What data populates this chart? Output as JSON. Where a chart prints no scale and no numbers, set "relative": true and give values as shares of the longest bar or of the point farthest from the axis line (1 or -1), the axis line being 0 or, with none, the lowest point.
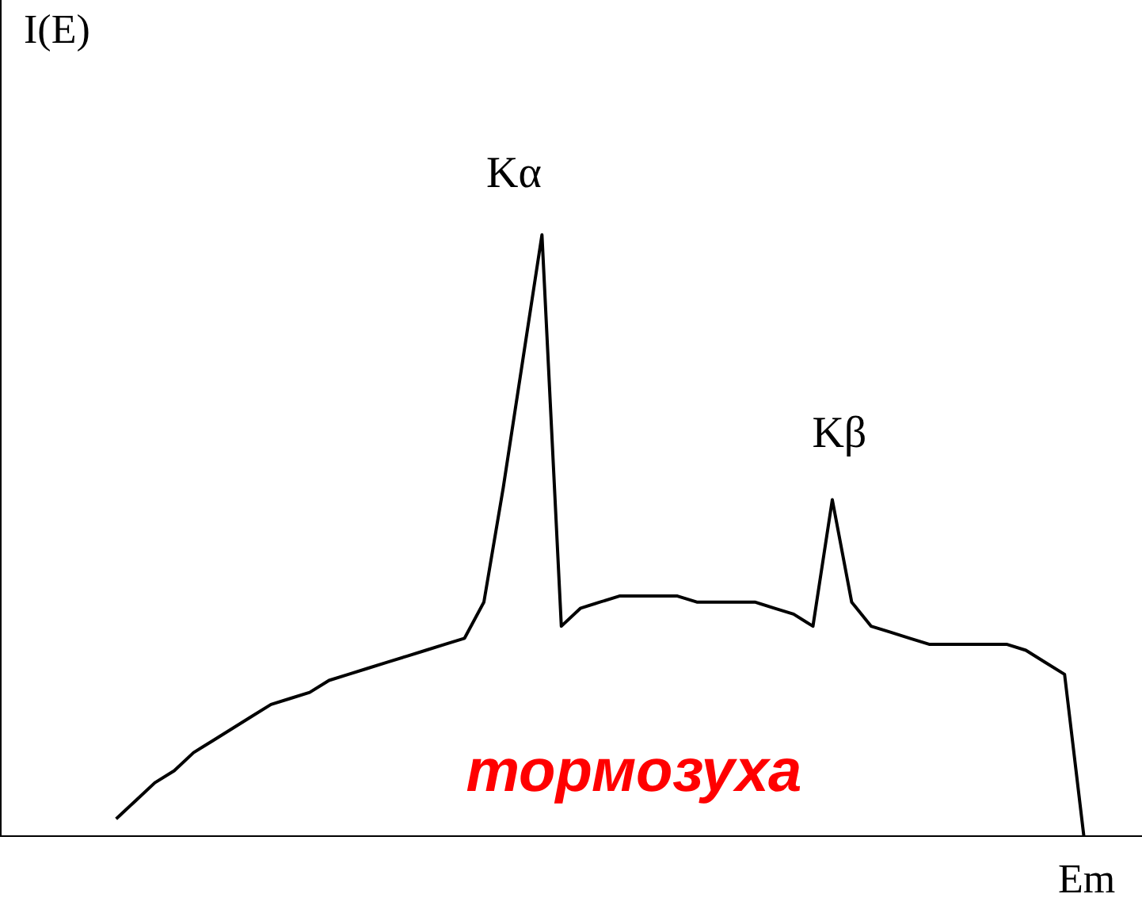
{
  "chart_data": {
    "type": "line",
    "relative": true,
    "xlabel": "Em",
    "ylabel": "I(E)",
    "annotations": [
      "Kα",
      "Kβ",
      "тормозуха"
    ],
    "tick_labels": false,
    "grid": false,
    "legend": false,
    "marker": "none",
    "line_style": "solid",
    "categories": [
      null,
      null,
      null,
      null,
      null,
      null,
      null,
      null,
      null,
      null,
      null,
      null,
      null,
      null,
      null,
      null,
      null,
      null,
      null,
      null,
      null,
      null,
      null,
      null,
      null,
      null,
      null,
      null,
      null,
      null,
      null,
      null,
      null,
      null,
      null,
      null,
      null,
      null,
      null,
      null,
      null,
      null,
      null,
      null,
      null,
      null,
      null,
      null,
      null,
      null,
      null,
      null,
      null,
      null,
      null,
      null,
      null,
      null,
      null,
      null
    ],
    "series": [
      {
        "color": "#000000",
        "values": [
          null,
          null,
          null,
          null,
          null,
          null,
          0.03,
          0.06,
          0.09,
          0.11,
          0.14,
          0.16,
          0.18,
          0.2,
          0.22,
          0.23,
          0.24,
          0.26,
          0.27,
          0.28,
          0.29,
          0.3,
          0.31,
          0.32,
          0.33,
          0.39,
          0.58,
          0.79,
          1,
          0.35,
          0.38,
          0.39,
          0.4,
          0.4,
          0.4,
          0.4,
          0.39,
          0.39,
          0.39,
          0.39,
          0.38,
          0.37,
          0.35,
          0.56,
          0.39,
          0.35,
          0.34,
          0.33,
          0.32,
          0.32,
          0.32,
          0.32,
          0.32,
          0.31,
          0.29,
          0.27,
          0,
          null,
          null,
          null
        ]
      }
    ]
  }
}
